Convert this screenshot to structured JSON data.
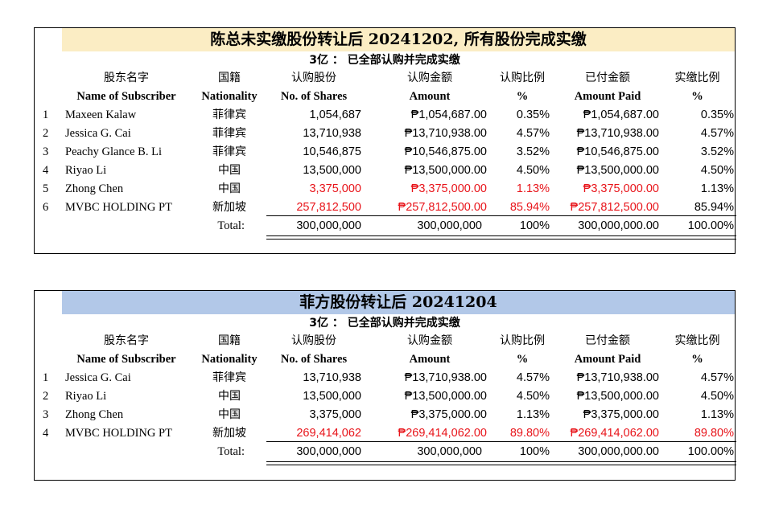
{
  "tables": [
    {
      "title": "陈总未实缴股份转让后 20241202, 所有股份完成实缴",
      "subtitle": "3亿 ： 已全部认购并完成实缴",
      "headers_cn": [
        "股东名字",
        "国籍",
        "认购股份",
        "认购金额",
        "认购比例",
        "已付金额",
        "实缴比例"
      ],
      "headers_en": [
        "Name of Subscriber",
        "Nationality",
        "No. of Shares",
        "Amount",
        "%",
        "Amount Paid",
        "%"
      ],
      "rows": [
        {
          "idx": "1",
          "name": "Maxeen Kalaw",
          "nat": "菲律宾",
          "shares": "1,054,687",
          "amount": "₱1,054,687.00",
          "pct": "0.35%",
          "paid": "₱1,054,687.00",
          "paid_pct": "0.35%"
        },
        {
          "idx": "2",
          "name": "Jessica G. Cai",
          "nat": "菲律宾",
          "shares": "13,710,938",
          "amount": "₱13,710,938.00",
          "pct": "4.57%",
          "paid": "₱13,710,938.00",
          "paid_pct": "4.57%"
        },
        {
          "idx": "3",
          "name": "Peachy Glance B. Li",
          "nat": "菲律宾",
          "shares": "10,546,875",
          "amount": "₱10,546,875.00",
          "pct": "3.52%",
          "paid": "₱10,546,875.00",
          "paid_pct": "3.52%"
        },
        {
          "idx": "4",
          "name": "Riyao Li",
          "nat": "中国",
          "shares": "13,500,000",
          "amount": "₱13,500,000.00",
          "pct": "4.50%",
          "paid": "₱13,500,000.00",
          "paid_pct": "4.50%"
        },
        {
          "idx": "5",
          "name": "Zhong Chen",
          "nat": "中国",
          "shares": "3,375,000",
          "amount": "₱3,375,000.00",
          "pct": "1.13%",
          "paid": "₱3,375,000.00",
          "paid_pct": "1.13%"
        },
        {
          "idx": "6",
          "name": "MVBC HOLDING PT",
          "nat": "新加坡",
          "shares": "257,812,500",
          "amount": "₱257,812,500.00",
          "pct": "85.94%",
          "paid": "₱257,812,500.00",
          "paid_pct": "85.94%"
        }
      ],
      "total": {
        "label": "Total:",
        "shares": "300,000,000",
        "amount": "300,000,000",
        "pct": "100%",
        "paid": "300,000,000.00",
        "paid_pct": "100.00%"
      }
    },
    {
      "title": "菲方股份转让后 20241204",
      "subtitle": "3亿 ： 已全部认购并完成实缴",
      "headers_cn": [
        "股东名字",
        "国籍",
        "认购股份",
        "认购金额",
        "认购比例",
        "已付金额",
        "实缴比例"
      ],
      "headers_en": [
        "Name of Subscriber",
        "Nationality",
        "No. of Shares",
        "Amount",
        "%",
        "Amount Paid",
        "%"
      ],
      "rows": [
        {
          "idx": "1",
          "name": "Jessica G. Cai",
          "nat": "菲律宾",
          "shares": "13,710,938",
          "amount": "₱13,710,938.00",
          "pct": "4.57%",
          "paid": "₱13,710,938.00",
          "paid_pct": "4.57%"
        },
        {
          "idx": "2",
          "name": "Riyao Li",
          "nat": "中国",
          "shares": "13,500,000",
          "amount": "₱13,500,000.00",
          "pct": "4.50%",
          "paid": "₱13,500,000.00",
          "paid_pct": "4.50%"
        },
        {
          "idx": "3",
          "name": "Zhong Chen",
          "nat": "中国",
          "shares": "3,375,000",
          "amount": "₱3,375,000.00",
          "pct": "1.13%",
          "paid": "₱3,375,000.00",
          "paid_pct": "1.13%"
        },
        {
          "idx": "4",
          "name": "MVBC HOLDING PT",
          "nat": "新加坡",
          "shares": "269,414,062",
          "amount": "₱269,414,062.00",
          "pct": "89.80%",
          "paid": "₱269,414,062.00",
          "paid_pct": "89.80%"
        }
      ],
      "total": {
        "label": "Total:",
        "shares": "300,000,000",
        "amount": "300,000,000",
        "pct": "100%",
        "paid": "300,000,000.00",
        "paid_pct": "100.00%"
      }
    }
  ],
  "colors": {
    "title1_bg": "#fbedc4",
    "title2_bg": "#b2c8e8",
    "highlight_red": "#e8141a"
  }
}
